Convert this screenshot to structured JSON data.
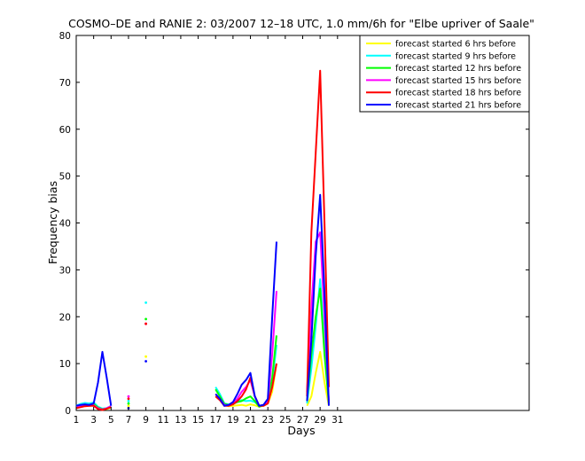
{
  "chart_data": {
    "type": "line",
    "title": "COSMO–DE and RANIE 2: 03/2007 12–18 UTC, 1.0 mm/6h for \"Elbe upriver of Saale\"",
    "xlabel": "Days",
    "ylabel": "Frequency bias",
    "xlim": [
      1,
      53
    ],
    "ylim": [
      0,
      80
    ],
    "xticks": [
      1,
      3,
      5,
      7,
      9,
      11,
      13,
      15,
      17,
      19,
      21,
      23,
      25,
      27,
      29,
      31
    ],
    "yticks": [
      0,
      10,
      20,
      30,
      40,
      50,
      60,
      70,
      80
    ],
    "grid": false,
    "legend_position": "top-right",
    "series": [
      {
        "name": "forecast started 6 hrs before",
        "color": "#ffff00",
        "x": [
          1,
          1.5,
          2,
          2.5,
          3,
          3.5,
          4,
          4.5,
          5,
          null,
          7,
          null,
          9,
          null,
          17,
          17.5,
          18,
          18.5,
          19,
          19.5,
          20,
          20.5,
          21,
          21.5,
          22,
          22.5,
          23,
          23.5,
          24,
          null,
          27.5,
          28,
          28.5,
          29,
          29.5,
          30
        ],
        "y": [
          0.5,
          0.8,
          1.0,
          1.1,
          1.2,
          0.4,
          0.2,
          0.3,
          0.6,
          null,
          1.0,
          null,
          11.5,
          null,
          3.0,
          2.5,
          1.2,
          0.9,
          1.0,
          1.1,
          1.2,
          1.0,
          1.3,
          1.1,
          0.8,
          1.0,
          1.5,
          4.0,
          10.0,
          null,
          1.0,
          3.0,
          8.0,
          12.5,
          6.0,
          1.0
        ]
      },
      {
        "name": "forecast started 9 hrs before",
        "color": "#00ffff",
        "x": [
          1,
          1.5,
          2,
          2.5,
          3,
          3.5,
          4,
          4.5,
          5,
          null,
          7,
          null,
          9,
          null,
          17,
          17.5,
          18,
          18.5,
          19,
          19.5,
          20,
          20.5,
          21,
          21.5,
          22,
          22.5,
          23,
          23.5,
          24,
          null,
          27.5,
          28,
          28.5,
          29,
          29.5,
          30
        ],
        "y": [
          1.0,
          1.4,
          1.6,
          1.5,
          1.7,
          0.8,
          0.4,
          0.5,
          1.0,
          null,
          2.0,
          null,
          23.0,
          null,
          5.0,
          3.5,
          1.5,
          1.3,
          1.5,
          2.0,
          2.2,
          2.0,
          2.1,
          1.8,
          1.0,
          1.2,
          2.0,
          6.0,
          14.0,
          null,
          1.5,
          9.0,
          18.0,
          28.0,
          14.0,
          2.0
        ]
      },
      {
        "name": "forecast started 12 hrs before",
        "color": "#00ff00",
        "x": [
          1,
          1.5,
          2,
          2.5,
          3,
          3.5,
          4,
          4.5,
          5,
          null,
          7,
          null,
          9,
          null,
          17,
          17.5,
          18,
          18.5,
          19,
          19.5,
          20,
          20.5,
          21,
          21.5,
          22,
          22.5,
          23,
          23.5,
          24,
          null,
          27.5,
          28,
          28.5,
          29,
          29.5,
          30
        ],
        "y": [
          0.8,
          1.0,
          1.2,
          1.2,
          1.4,
          0.6,
          0.3,
          0.4,
          0.8,
          null,
          1.5,
          null,
          19.5,
          null,
          4.5,
          3.0,
          1.4,
          1.2,
          1.4,
          1.8,
          2.0,
          2.6,
          3.0,
          2.0,
          0.8,
          1.1,
          2.0,
          7.0,
          16.0,
          null,
          2.0,
          12.0,
          20.0,
          26.0,
          12.0,
          1.5
        ]
      },
      {
        "name": "forecast started 15 hrs before",
        "color": "#ff00ff",
        "x": [
          1,
          1.5,
          2,
          2.5,
          3,
          3.5,
          4,
          4.5,
          5,
          null,
          7,
          null,
          9,
          null,
          17,
          17.5,
          18,
          18.5,
          19,
          19.5,
          20,
          20.5,
          21,
          21.5,
          22,
          22.5,
          23,
          23.5,
          24,
          null,
          27.5,
          28,
          28.5,
          29,
          29.5,
          30
        ],
        "y": [
          0.6,
          0.9,
          1.0,
          1.0,
          1.1,
          0.5,
          0.2,
          0.5,
          0.9,
          null,
          3.0,
          null,
          18.5,
          null,
          3.5,
          2.5,
          1.2,
          1.0,
          1.5,
          2.5,
          4.0,
          5.0,
          6.5,
          3.0,
          1.0,
          1.2,
          2.0,
          12.0,
          25.5,
          null,
          4.0,
          22.0,
          36.0,
          38.0,
          20.0,
          2.0
        ]
      },
      {
        "name": "forecast started 18 hrs before",
        "color": "#ff0000",
        "x": [
          1,
          1.5,
          2,
          2.5,
          3,
          3.5,
          4,
          4.5,
          5,
          null,
          7,
          null,
          9,
          null,
          17,
          17.5,
          18,
          18.5,
          19,
          19.5,
          20,
          20.5,
          21,
          21.5,
          22,
          22.5,
          23,
          23.5,
          24,
          null,
          27.5,
          28,
          28.5,
          29,
          29.5,
          30
        ],
        "y": [
          0.5,
          0.7,
          0.9,
          1.0,
          1.0,
          0.3,
          0.1,
          0.4,
          0.7,
          null,
          2.5,
          null,
          18.5,
          null,
          3.0,
          2.2,
          1.0,
          1.0,
          1.3,
          2.0,
          3.0,
          4.5,
          7.0,
          3.0,
          1.0,
          1.0,
          1.5,
          5.0,
          10.0,
          null,
          3.0,
          38.0,
          55.0,
          72.5,
          40.0,
          5.0
        ]
      },
      {
        "name": "forecast started 21 hrs before",
        "color": "#0000ff",
        "x": [
          1,
          1.5,
          2,
          2.5,
          3,
          3.5,
          4,
          4.5,
          5,
          null,
          7,
          null,
          9,
          null,
          17,
          17.5,
          18,
          18.5,
          19,
          19.5,
          20,
          20.5,
          21,
          21.5,
          22,
          22.5,
          23,
          23.5,
          24,
          null,
          27.5,
          28,
          28.5,
          29,
          29.5,
          30
        ],
        "y": [
          1.0,
          1.2,
          1.3,
          1.2,
          1.5,
          6.0,
          12.5,
          7.0,
          1.0,
          null,
          0.5,
          null,
          10.5,
          null,
          3.5,
          2.5,
          1.0,
          1.2,
          1.8,
          3.5,
          5.5,
          6.5,
          8.0,
          3.0,
          1.0,
          1.2,
          2.5,
          20.0,
          36.0,
          null,
          2.0,
          15.0,
          33.0,
          46.0,
          25.0,
          1.0
        ]
      }
    ]
  }
}
